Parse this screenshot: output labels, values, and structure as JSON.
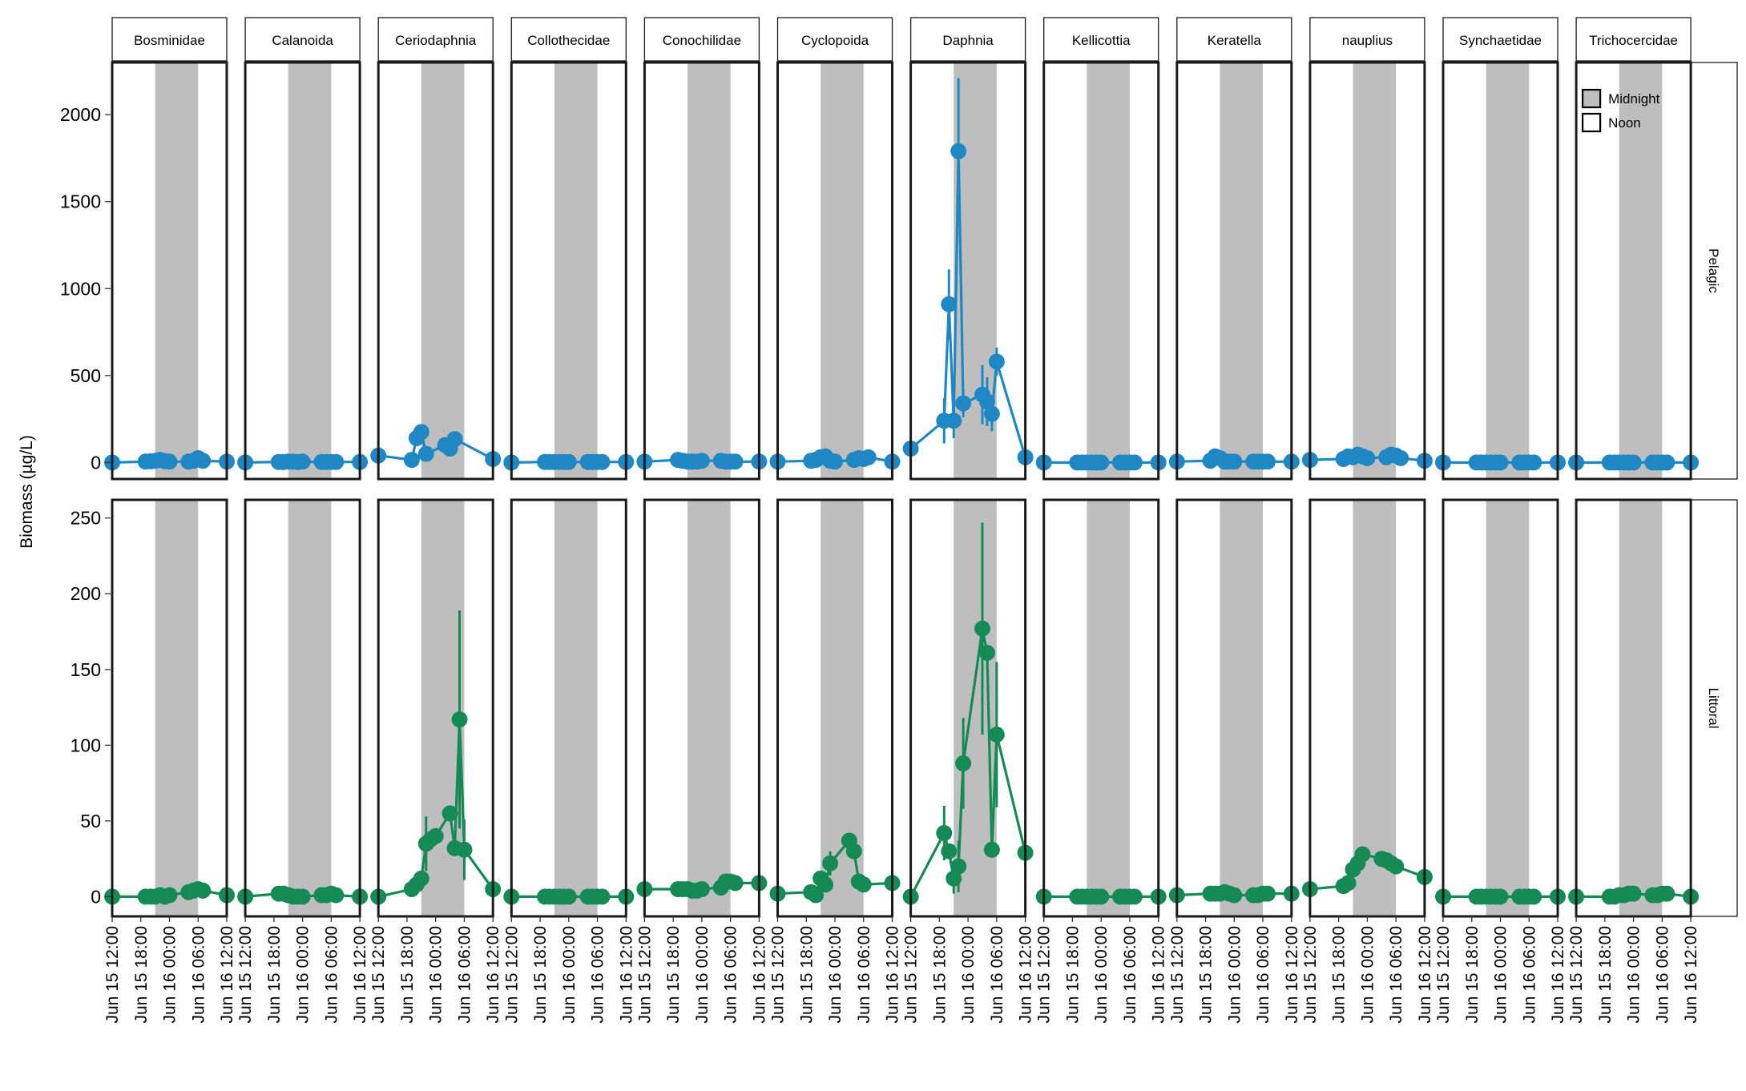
{
  "chart_data": {
    "type": "line",
    "ylabel": "Biomass (µg/L)",
    "xlabel": "",
    "x_tick_labels": [
      "Jun 15 12:00",
      "Jun 15 18:00",
      "Jun 16 00:00",
      "Jun 16 06:00",
      "Jun 16 12:00"
    ],
    "x_range_hours": [
      0,
      24
    ],
    "shaded_interval_hours": [
      9,
      18
    ],
    "panels": [
      "Bosminidae",
      "Calanoida",
      "Ceriodaphnia",
      "Collothecidae",
      "Conochilidae",
      "Cyclopoida",
      "Daphnia",
      "Kellicottia",
      "Keratella",
      "nauplius",
      "Synchaetidae",
      "Trichocercidae"
    ],
    "rows": [
      {
        "name": "Pelagic",
        "color": "#1F88C4",
        "ylim": [
          -95,
          2300
        ],
        "yticks": [
          0,
          500,
          1000,
          1500,
          2000
        ]
      },
      {
        "name": "Littoral",
        "color": "#158A55",
        "ylim": [
          -13,
          262
        ],
        "yticks": [
          0,
          50,
          100,
          150,
          200,
          250
        ]
      }
    ],
    "legend": {
      "placement": "top-right",
      "entries": [
        {
          "label": "Midnight",
          "fill": "#BEBEBE"
        },
        {
          "label": "Noon",
          "fill": "#FFFFFF"
        }
      ]
    },
    "series": {
      "Pelagic": {
        "Bosminidae": [
          [
            0,
            0
          ],
          [
            7,
            5
          ],
          [
            8,
            7
          ],
          [
            9,
            10
          ],
          [
            10,
            15
          ],
          [
            11,
            8
          ],
          [
            12,
            5
          ],
          [
            16,
            5
          ],
          [
            17,
            10
          ],
          [
            18,
            25
          ],
          [
            19,
            10
          ],
          [
            24,
            5
          ]
        ],
        "Calanoida": [
          [
            0,
            0
          ],
          [
            7,
            3
          ],
          [
            8,
            3
          ],
          [
            9,
            5
          ],
          [
            10,
            5
          ],
          [
            11,
            3
          ],
          [
            12,
            5
          ],
          [
            16,
            3
          ],
          [
            17,
            3
          ],
          [
            18,
            3
          ],
          [
            19,
            3
          ],
          [
            24,
            3
          ]
        ],
        "Ceriodaphnia": [
          [
            0,
            40
          ],
          [
            7,
            15
          ],
          [
            8,
            140
          ],
          [
            9,
            175
          ],
          [
            10,
            50
          ],
          [
            14,
            100
          ],
          [
            15,
            80
          ],
          [
            16,
            135
          ],
          [
            24,
            20
          ]
        ],
        "Collothecidae": [
          [
            0,
            0
          ],
          [
            7,
            3
          ],
          [
            8,
            3
          ],
          [
            9,
            3
          ],
          [
            10,
            3
          ],
          [
            11,
            3
          ],
          [
            12,
            3
          ],
          [
            16,
            3
          ],
          [
            17,
            3
          ],
          [
            18,
            3
          ],
          [
            19,
            3
          ],
          [
            24,
            3
          ]
        ],
        "Conochilidae": [
          [
            0,
            5
          ],
          [
            7,
            15
          ],
          [
            8,
            10
          ],
          [
            9,
            5
          ],
          [
            10,
            5
          ],
          [
            11,
            5
          ],
          [
            12,
            10
          ],
          [
            16,
            10
          ],
          [
            17,
            5
          ],
          [
            18,
            5
          ],
          [
            19,
            5
          ],
          [
            24,
            5
          ]
        ],
        "Cyclopoida": [
          [
            0,
            5
          ],
          [
            7,
            10
          ],
          [
            8,
            15
          ],
          [
            9,
            30
          ],
          [
            10,
            35
          ],
          [
            11,
            10
          ],
          [
            12,
            5
          ],
          [
            16,
            15
          ],
          [
            17,
            25
          ],
          [
            18,
            20
          ],
          [
            19,
            30
          ],
          [
            24,
            5
          ]
        ],
        "Daphnia": [
          [
            0,
            80,
            null
          ],
          [
            7,
            240,
            130
          ],
          [
            8,
            910,
            200
          ],
          [
            9,
            240,
            100
          ],
          [
            10,
            1790,
            420
          ],
          [
            11,
            340,
            80
          ],
          [
            15,
            390,
            170
          ],
          [
            16,
            350,
            140
          ],
          [
            17,
            280,
            100
          ],
          [
            18,
            580,
            80
          ],
          [
            24,
            30,
            null
          ]
        ],
        "Kellicottia": [
          [
            0,
            0
          ],
          [
            7,
            0
          ],
          [
            8,
            0
          ],
          [
            9,
            0
          ],
          [
            10,
            0
          ],
          [
            11,
            0
          ],
          [
            12,
            0
          ],
          [
            16,
            0
          ],
          [
            17,
            0
          ],
          [
            18,
            0
          ],
          [
            19,
            0
          ],
          [
            24,
            0
          ]
        ],
        "Keratella": [
          [
            0,
            5
          ],
          [
            7,
            10
          ],
          [
            8,
            35
          ],
          [
            9,
            25
          ],
          [
            10,
            5
          ],
          [
            11,
            5
          ],
          [
            12,
            5
          ],
          [
            16,
            5
          ],
          [
            17,
            5
          ],
          [
            18,
            5
          ],
          [
            19,
            5
          ],
          [
            24,
            5
          ]
        ],
        "nauplius": [
          [
            0,
            15
          ],
          [
            7,
            20
          ],
          [
            8,
            35
          ],
          [
            9,
            30
          ],
          [
            10,
            45
          ],
          [
            11,
            35
          ],
          [
            12,
            25
          ],
          [
            16,
            30
          ],
          [
            17,
            45
          ],
          [
            18,
            40
          ],
          [
            19,
            25
          ],
          [
            24,
            10
          ]
        ],
        "Synchaetidae": [
          [
            0,
            0
          ],
          [
            7,
            0
          ],
          [
            8,
            0
          ],
          [
            9,
            0
          ],
          [
            10,
            0
          ],
          [
            11,
            0
          ],
          [
            12,
            0
          ],
          [
            16,
            0
          ],
          [
            17,
            0
          ],
          [
            18,
            0
          ],
          [
            19,
            0
          ],
          [
            24,
            0
          ]
        ],
        "Trichocercidae": [
          [
            0,
            0
          ],
          [
            7,
            0
          ],
          [
            8,
            0
          ],
          [
            9,
            0
          ],
          [
            10,
            0
          ],
          [
            11,
            0
          ],
          [
            12,
            0
          ],
          [
            16,
            0
          ],
          [
            17,
            0
          ],
          [
            18,
            0
          ],
          [
            19,
            0
          ],
          [
            24,
            0
          ]
        ]
      },
      "Littoral": {
        "Bosminidae": [
          [
            0,
            0
          ],
          [
            7,
            0
          ],
          [
            8,
            0
          ],
          [
            9,
            0
          ],
          [
            10,
            1
          ],
          [
            11,
            0
          ],
          [
            12,
            1
          ],
          [
            16,
            3
          ],
          [
            17,
            4
          ],
          [
            18,
            5
          ],
          [
            19,
            4
          ],
          [
            24,
            1
          ]
        ],
        "Calanoida": [
          [
            0,
            0
          ],
          [
            7,
            2
          ],
          [
            8,
            2
          ],
          [
            9,
            1
          ],
          [
            10,
            0
          ],
          [
            11,
            0
          ],
          [
            12,
            0
          ],
          [
            16,
            1
          ],
          [
            17,
            1
          ],
          [
            18,
            2
          ],
          [
            19,
            1
          ],
          [
            24,
            0
          ]
        ],
        "Ceriodaphnia": [
          [
            0,
            0,
            null
          ],
          [
            7,
            5,
            null
          ],
          [
            8,
            8,
            null
          ],
          [
            9,
            12,
            null
          ],
          [
            10,
            35,
            18
          ],
          [
            11,
            38,
            null
          ],
          [
            12,
            40,
            null
          ],
          [
            15,
            55,
            null
          ],
          [
            16,
            32,
            null
          ],
          [
            17,
            117,
            72
          ],
          [
            18,
            31,
            20
          ],
          [
            24,
            5,
            null
          ]
        ],
        "Collothecidae": [
          [
            0,
            0
          ],
          [
            7,
            0
          ],
          [
            8,
            0
          ],
          [
            9,
            0
          ],
          [
            10,
            0
          ],
          [
            11,
            0
          ],
          [
            12,
            0
          ],
          [
            16,
            0
          ],
          [
            17,
            0
          ],
          [
            18,
            0
          ],
          [
            19,
            0
          ],
          [
            24,
            0
          ]
        ],
        "Conochilidae": [
          [
            0,
            5
          ],
          [
            7,
            5
          ],
          [
            8,
            5
          ],
          [
            9,
            5
          ],
          [
            10,
            4
          ],
          [
            11,
            4
          ],
          [
            12,
            5
          ],
          [
            16,
            6
          ],
          [
            17,
            10
          ],
          [
            18,
            10
          ],
          [
            19,
            9
          ],
          [
            24,
            9
          ]
        ],
        "Cyclopoida": [
          [
            0,
            2,
            null
          ],
          [
            7,
            3,
            null
          ],
          [
            8,
            1,
            null
          ],
          [
            9,
            12,
            null
          ],
          [
            10,
            8,
            null
          ],
          [
            11,
            22,
            8
          ],
          [
            15,
            37,
            null
          ],
          [
            16,
            30,
            null
          ],
          [
            17,
            10,
            null
          ],
          [
            18,
            8,
            null
          ],
          [
            24,
            9,
            null
          ]
        ],
        "Daphnia": [
          [
            0,
            0,
            null
          ],
          [
            7,
            42,
            18
          ],
          [
            8,
            30,
            null
          ],
          [
            9,
            12,
            10
          ],
          [
            10,
            20,
            17
          ],
          [
            11,
            88,
            30
          ],
          [
            15,
            177,
            70
          ],
          [
            16,
            161,
            null
          ],
          [
            17,
            31,
            null
          ],
          [
            18,
            107,
            48
          ],
          [
            24,
            29,
            null
          ]
        ],
        "Kellicottia": [
          [
            0,
            0
          ],
          [
            7,
            0
          ],
          [
            8,
            0
          ],
          [
            9,
            0
          ],
          [
            10,
            0
          ],
          [
            11,
            0
          ],
          [
            12,
            0
          ],
          [
            16,
            0
          ],
          [
            17,
            0
          ],
          [
            18,
            0
          ],
          [
            19,
            0
          ],
          [
            24,
            0
          ]
        ],
        "Keratella": [
          [
            0,
            1
          ],
          [
            7,
            2
          ],
          [
            8,
            2
          ],
          [
            9,
            2
          ],
          [
            10,
            3
          ],
          [
            11,
            2
          ],
          [
            12,
            1
          ],
          [
            16,
            1
          ],
          [
            17,
            1
          ],
          [
            18,
            2
          ],
          [
            19,
            2
          ],
          [
            24,
            2
          ]
        ],
        "nauplius": [
          [
            0,
            5
          ],
          [
            7,
            7
          ],
          [
            8,
            9
          ],
          [
            9,
            18
          ],
          [
            10,
            22
          ],
          [
            11,
            28
          ],
          [
            15,
            25
          ],
          [
            16,
            24
          ],
          [
            17,
            22
          ],
          [
            18,
            20
          ],
          [
            24,
            13
          ]
        ],
        "Synchaetidae": [
          [
            0,
            0
          ],
          [
            7,
            0
          ],
          [
            8,
            0
          ],
          [
            9,
            0
          ],
          [
            10,
            0
          ],
          [
            11,
            0
          ],
          [
            12,
            0
          ],
          [
            16,
            0
          ],
          [
            17,
            0
          ],
          [
            18,
            0
          ],
          [
            19,
            0
          ],
          [
            24,
            0
          ]
        ],
        "Trichocercidae": [
          [
            0,
            0
          ],
          [
            7,
            0
          ],
          [
            8,
            0
          ],
          [
            9,
            1
          ],
          [
            10,
            1
          ],
          [
            11,
            2
          ],
          [
            12,
            2
          ],
          [
            16,
            1
          ],
          [
            17,
            1
          ],
          [
            18,
            2
          ],
          [
            19,
            2
          ],
          [
            24,
            0
          ]
        ]
      }
    }
  }
}
